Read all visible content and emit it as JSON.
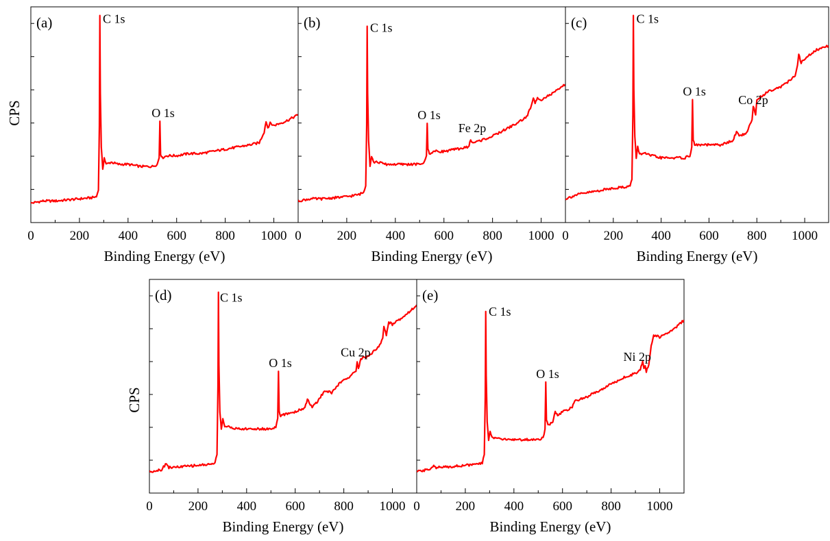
{
  "figure": {
    "ylabel_text": "CPS",
    "line_color": "#ff0000"
  },
  "chart_data": [
    {
      "id": "a",
      "type": "line",
      "panel_label": "(a)",
      "xlabel": "Binding Energy (eV)",
      "ylabel": "CPS",
      "xlim": [
        0,
        1100
      ],
      "ylim": [
        0,
        100
      ],
      "xticks": [
        0,
        200,
        400,
        600,
        800,
        1000
      ],
      "yticks_labeled": false,
      "grid": false,
      "annotations": [
        {
          "text": "C 1s",
          "x": 285,
          "y": 96
        },
        {
          "text": "O 1s",
          "x": 531,
          "y": 47
        }
      ],
      "series": [
        {
          "color": "#ff0000",
          "x": [
            0,
            50,
            100,
            150,
            200,
            250,
            270,
            278,
            282,
            284,
            286,
            290,
            296,
            302,
            310,
            330,
            360,
            400,
            450,
            500,
            520,
            528,
            531,
            534,
            540,
            560,
            600,
            650,
            700,
            750,
            800,
            850,
            900,
            940,
            960,
            968,
            975,
            985,
            1000,
            1050,
            1100
          ],
          "y": [
            9,
            10,
            10,
            10.5,
            11,
            11.5,
            12,
            15,
            45,
            96,
            60,
            35,
            25,
            30,
            27,
            28,
            27,
            27,
            26,
            26,
            27,
            30,
            47,
            32,
            30,
            31,
            31,
            32,
            32,
            33,
            34,
            35,
            36,
            37,
            42,
            47,
            44,
            46,
            45,
            47,
            50
          ]
        }
      ]
    },
    {
      "id": "b",
      "type": "line",
      "panel_label": "(b)",
      "xlabel": "Binding Energy (eV)",
      "ylabel": "",
      "xlim": [
        0,
        1100
      ],
      "ylim": [
        0,
        100
      ],
      "xticks": [
        0,
        200,
        400,
        600,
        800,
        1000
      ],
      "yticks_labeled": false,
      "grid": false,
      "annotations": [
        {
          "text": "C 1s",
          "x": 285,
          "y": 91
        },
        {
          "text": "O 1s",
          "x": 531,
          "y": 46
        },
        {
          "text": "Fe 2p",
          "x": 710,
          "y": 40
        }
      ],
      "series": [
        {
          "color": "#ff0000",
          "x": [
            0,
            50,
            100,
            150,
            200,
            250,
            270,
            278,
            282,
            284,
            286,
            290,
            296,
            302,
            310,
            330,
            360,
            400,
            450,
            500,
            520,
            528,
            531,
            534,
            540,
            560,
            600,
            650,
            700,
            710,
            720,
            750,
            800,
            850,
            900,
            940,
            960,
            968,
            975,
            985,
            1000,
            1050,
            1100
          ],
          "y": [
            10,
            11,
            11,
            11.5,
            12,
            13,
            14,
            17,
            45,
            91,
            60,
            38,
            26,
            31,
            28,
            28,
            27,
            27,
            27,
            27,
            28,
            31,
            46,
            34,
            32,
            33,
            33,
            34,
            35,
            38,
            37,
            38,
            40,
            43,
            46,
            49,
            54,
            58,
            55,
            58,
            57,
            60,
            64
          ]
        }
      ]
    },
    {
      "id": "c",
      "type": "line",
      "panel_label": "(c)",
      "xlabel": "Binding Energy (eV)",
      "ylabel": "",
      "xlim": [
        0,
        1100
      ],
      "ylim": [
        0,
        100
      ],
      "xticks": [
        0,
        200,
        400,
        600,
        800,
        1000
      ],
      "yticks_labeled": false,
      "grid": false,
      "annotations": [
        {
          "text": "C 1s",
          "x": 285,
          "y": 96
        },
        {
          "text": "O 1s",
          "x": 531,
          "y": 57
        },
        {
          "text": "Co 2p",
          "x": 780,
          "y": 53
        }
      ],
      "series": [
        {
          "color": "#ff0000",
          "x": [
            0,
            50,
            100,
            150,
            200,
            250,
            270,
            278,
            282,
            284,
            286,
            290,
            296,
            302,
            310,
            330,
            360,
            400,
            450,
            500,
            520,
            528,
            531,
            534,
            540,
            560,
            600,
            650,
            700,
            715,
            730,
            760,
            780,
            785,
            795,
            800,
            850,
            900,
            940,
            960,
            970,
            975,
            985,
            1000,
            1050,
            1100
          ],
          "y": [
            11,
            13,
            14,
            15,
            16,
            16.5,
            17,
            20,
            50,
            96,
            62,
            40,
            30,
            35,
            32,
            32,
            31,
            30,
            30,
            30,
            31,
            35,
            57,
            38,
            36,
            36,
            36,
            36,
            38,
            42,
            40,
            42,
            48,
            54,
            50,
            57,
            61,
            63,
            66,
            68,
            73,
            78,
            74,
            76,
            80,
            82
          ]
        }
      ]
    },
    {
      "id": "d",
      "type": "line",
      "panel_label": "(d)",
      "xlabel": "Binding Energy (eV)",
      "ylabel": "CPS",
      "xlim": [
        0,
        1100
      ],
      "ylim": [
        0,
        100
      ],
      "xticks": [
        0,
        200,
        400,
        600,
        800,
        1000
      ],
      "yticks_labeled": false,
      "grid": false,
      "annotations": [
        {
          "text": "C 1s",
          "x": 285,
          "y": 94
        },
        {
          "text": "O 1s",
          "x": 531,
          "y": 57
        },
        {
          "text": "Cu 2p",
          "x": 855,
          "y": 62
        }
      ],
      "series": [
        {
          "color": "#ff0000",
          "x": [
            0,
            50,
            70,
            80,
            100,
            150,
            200,
            250,
            270,
            278,
            282,
            284,
            286,
            290,
            296,
            302,
            310,
            330,
            360,
            400,
            450,
            500,
            520,
            528,
            531,
            534,
            540,
            560,
            600,
            640,
            650,
            670,
            700,
            720,
            750,
            780,
            800,
            830,
            850,
            855,
            860,
            870,
            900,
            940,
            960,
            965,
            975,
            985,
            1000,
            1050,
            1100
          ],
          "y": [
            10,
            11,
            14,
            12,
            12,
            12.5,
            13,
            13.5,
            14,
            18,
            50,
            94,
            60,
            38,
            30,
            35,
            31,
            31,
            30,
            30,
            30,
            30,
            31,
            35,
            57,
            38,
            36,
            37,
            38,
            40,
            44,
            40,
            44,
            48,
            47,
            51,
            53,
            55,
            57,
            62,
            58,
            63,
            64,
            68,
            72,
            78,
            74,
            80,
            79,
            83,
            88
          ]
        }
      ]
    },
    {
      "id": "e",
      "type": "line",
      "panel_label": "(e)",
      "xlabel": "Binding Energy (eV)",
      "ylabel": "",
      "xlim": [
        0,
        1100
      ],
      "ylim": [
        0,
        100
      ],
      "xticks": [
        0,
        200,
        400,
        600,
        800,
        1000
      ],
      "yticks_labeled": false,
      "grid": false,
      "annotations": [
        {
          "text": "C 1s",
          "x": 285,
          "y": 85
        },
        {
          "text": "O 1s",
          "x": 531,
          "y": 52
        },
        {
          "text": "Ni 2p",
          "x": 935,
          "y": 60
        }
      ],
      "series": [
        {
          "color": "#ff0000",
          "x": [
            0,
            50,
            70,
            80,
            100,
            150,
            200,
            250,
            270,
            278,
            282,
            284,
            286,
            290,
            296,
            302,
            310,
            330,
            360,
            400,
            450,
            500,
            520,
            528,
            531,
            534,
            540,
            560,
            570,
            580,
            600,
            640,
            650,
            700,
            750,
            800,
            850,
            900,
            920,
            930,
            935,
            940,
            945,
            955,
            965,
            975,
            1000,
            1050,
            1100
          ],
          "y": [
            10,
            11,
            13,
            12,
            12,
            12.5,
            13,
            13.5,
            14,
            18,
            45,
            85,
            55,
            33,
            25,
            29,
            26,
            26,
            25,
            25,
            25,
            25,
            26,
            30,
            52,
            34,
            32,
            33,
            38,
            36,
            38,
            40,
            43,
            45,
            48,
            51,
            54,
            56,
            58,
            62,
            58,
            60,
            57,
            60,
            69,
            74,
            73,
            76,
            81
          ]
        }
      ]
    }
  ]
}
